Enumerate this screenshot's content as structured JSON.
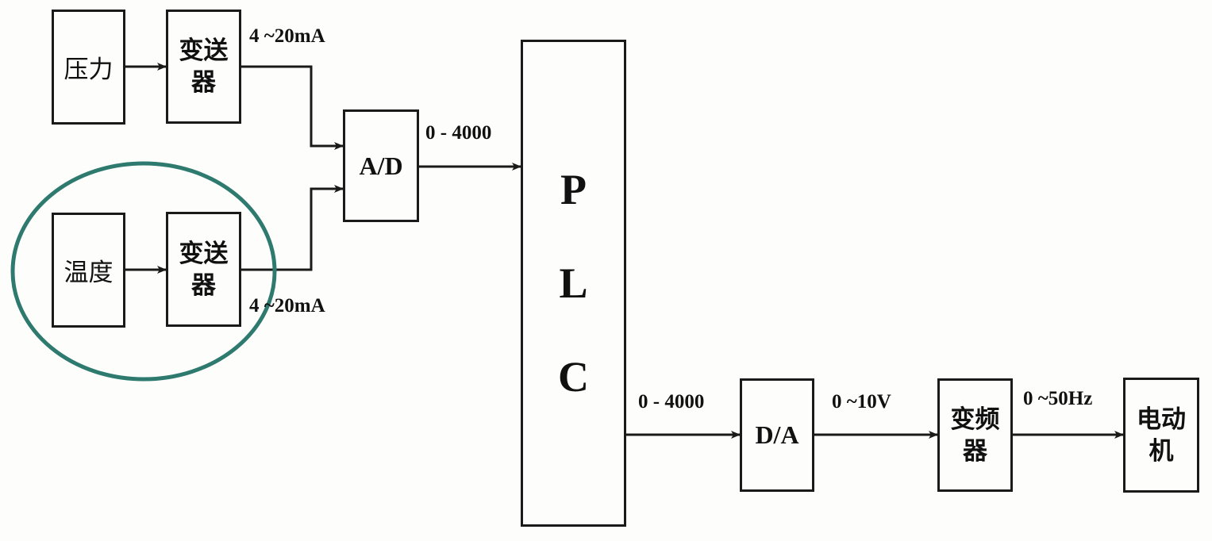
{
  "blocks": {
    "pressure": "压力",
    "pressure_transmitter": "变送器",
    "temperature": "温度",
    "temperature_transmitter": "变送器",
    "ad": "A/D",
    "plc": [
      "P",
      "L",
      "C"
    ],
    "da": "D/A",
    "inverter": "变频器",
    "motor": "电动机"
  },
  "signals": {
    "pressure_out": "4 ~20mA",
    "temperature_out": "4 ~20mA",
    "ad_out": "0 - 4000",
    "plc_out": "0 - 4000",
    "da_out": "0 ~10V",
    "inverter_out": "0 ~50Hz"
  },
  "highlight_color": "#2e7a6e",
  "line_color": "#1a1a1a"
}
